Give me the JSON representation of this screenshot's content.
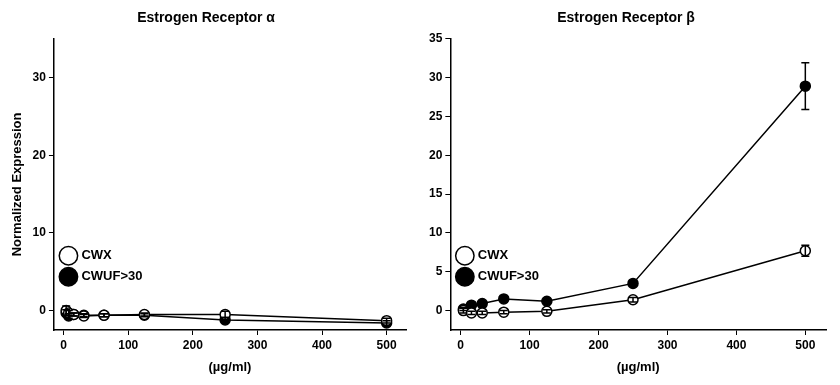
{
  "chart_data": [
    {
      "type": "line",
      "title": "Estrogen Receptor α",
      "x_label": "(µg/ml)",
      "y_label": "Normalized Expression",
      "x": [
        3.9,
        7.8,
        15.6,
        31.25,
        62.5,
        125,
        250,
        500
      ],
      "series": [
        {
          "name": "CWX",
          "color": "#000000",
          "marker": "open_circle",
          "line_style": "solid",
          "values": [
            0,
            -0.3,
            -0.5,
            -0.7,
            -0.6,
            -0.5,
            -0.5,
            -1.3
          ],
          "errors": [
            0.6,
            0.3,
            0.2,
            0.2,
            0.2,
            0.2,
            0.4,
            0.3
          ]
        },
        {
          "name": "CWUF>30",
          "color": "#000000",
          "marker": "circle",
          "line_style": "solid",
          "values": [
            -0.3,
            -0.7,
            -0.5,
            -0.6,
            -0.6,
            -0.6,
            -1.2,
            -1.6
          ],
          "errors": [
            0.4,
            0.3,
            0.2,
            0.2,
            0.2,
            0.2,
            0.3,
            0.3
          ]
        }
      ],
      "xlim": [
        -15,
        530
      ],
      "xticks": [
        0,
        100,
        200,
        300,
        400,
        500
      ],
      "ylim": [
        -2.5,
        35
      ],
      "yticks": [
        0,
        10,
        20,
        30
      ],
      "grid": false,
      "legend": "upper right"
    },
    {
      "type": "line",
      "title": "Estrogen Receptor β",
      "x_label": "(µg/ml)",
      "x": [
        3.9,
        15.6,
        31.25,
        62.5,
        125,
        250,
        500
      ],
      "series": [
        {
          "name": "CWX",
          "color": "#000000",
          "marker": "open_circle",
          "line_style": "solid",
          "values": [
            0,
            -0.3,
            -0.3,
            -0.2,
            -0.1,
            1.4,
            7.7
          ],
          "errors": [
            0.3,
            0.2,
            0.2,
            0.2,
            0.2,
            0.3,
            0.7
          ]
        },
        {
          "name": "CWUF>30",
          "color": "#000000",
          "marker": "circle",
          "line_style": "solid",
          "values": [
            0.2,
            0.7,
            0.9,
            1.5,
            1.2,
            3.5,
            28.9
          ],
          "errors": [
            0.2,
            0.2,
            0.2,
            0.2,
            0.2,
            0.3,
            3
          ]
        }
      ],
      "xlim": [
        -15,
        530
      ],
      "xticks": [
        0,
        100,
        200,
        300,
        400,
        500
      ],
      "ylim": [
        -2.5,
        35
      ],
      "yticks": [
        0,
        5,
        10,
        15,
        20,
        25,
        30,
        35
      ],
      "grid": false,
      "legend": "upper right"
    }
  ]
}
